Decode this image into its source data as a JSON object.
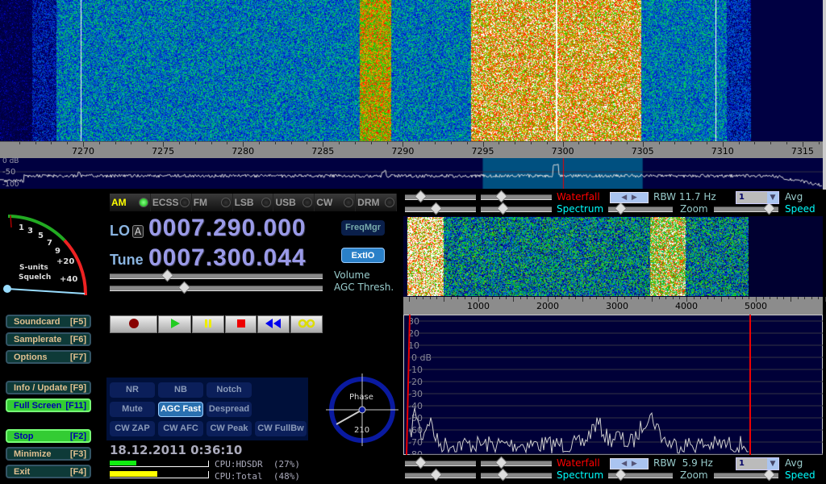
{
  "waterfall": {
    "freq_ticks": [
      "7270",
      "7275",
      "7280",
      "7285",
      "7290",
      "7295",
      "7300",
      "7305",
      "7310",
      "7315"
    ],
    "db_labels": [
      "0 dB",
      "-50",
      "-100"
    ],
    "tuned_khz": 7300.044,
    "filter_khz": [
      7295,
      7305
    ]
  },
  "modes": [
    {
      "label": "AM",
      "active": true
    },
    {
      "label": "ECSS",
      "active": false
    },
    {
      "label": "FM",
      "active": false
    },
    {
      "label": "LSB",
      "active": false
    },
    {
      "label": "USB",
      "active": false
    },
    {
      "label": "CW",
      "active": false
    },
    {
      "label": "DRM",
      "active": false
    }
  ],
  "smeter": {
    "scale": [
      "1",
      "3",
      "5",
      "7",
      "9",
      "+20",
      "+40"
    ],
    "label1": "S-units",
    "label2": "Squelch"
  },
  "lo": {
    "label": "LO",
    "lock": "A",
    "value": "0007.290.000"
  },
  "tune": {
    "label": "Tune",
    "value": "0007.300.044"
  },
  "buttons": {
    "freqmgr": "FreqMgr",
    "extio": "ExtIO"
  },
  "sliders": {
    "volume": "Volume",
    "agc": "AGC Thresh.",
    "volume_level": 0.27,
    "agc_level": 0.35
  },
  "side": [
    {
      "label": "Soundcard",
      "key": "[F5]"
    },
    {
      "label": "Samplerate",
      "key": "[F6]"
    },
    {
      "label": "Options",
      "key": "[F7]"
    },
    {
      "label": "Info / Update",
      "key": "[F9]"
    },
    {
      "label": "Full Screen",
      "key": "[F11]"
    },
    {
      "label": "Stop",
      "key": "[F2]"
    },
    {
      "label": "Minimize",
      "key": "[F3]"
    },
    {
      "label": "Exit",
      "key": "[F4]"
    }
  ],
  "transport": [
    "record",
    "play",
    "pause",
    "stop",
    "rewind",
    "loop"
  ],
  "dsp": [
    "NR",
    "NB",
    "Notch",
    "Mute",
    "AGC Fast",
    "Despread",
    "CW ZAP",
    "CW AFC",
    "CW Peak",
    "CW FullBw"
  ],
  "dsp_active": "AGC Fast",
  "phase": {
    "label": "Phase",
    "value": "210"
  },
  "datetime": "18.12.2011 0:36:10",
  "cpu": {
    "hdsdr": "CPU:HDSDR  (27%)",
    "total": "CPU:Total  (48%)",
    "hdsdr_pct": 27,
    "total_pct": 48
  },
  "audio": {
    "top": {
      "waterfall": "Waterfall",
      "spectrum": "Spectrum",
      "rbw": "RBW 11.7 Hz",
      "avg_value": "1",
      "avg": "Avg",
      "zoom": "Zoom",
      "speed": "Speed"
    },
    "bottom": {
      "waterfall": "Waterfall",
      "spectrum": "Spectrum",
      "rbw": "RBW  5.9 Hz",
      "avg_value": "1",
      "avg": "Avg",
      "zoom": "Zoom",
      "speed": "Speed"
    },
    "freq_ticks": [
      "1000",
      "2000",
      "3000",
      "4000",
      "5000"
    ],
    "db_ticks": [
      "30",
      "20",
      "10",
      "0 dB",
      "-10",
      "-20",
      "-30",
      "-40",
      "-50",
      "-60",
      "-70",
      "-80"
    ]
  },
  "colors": {
    "accent_red": "#ff0000",
    "accent_cyan": "#00ffff",
    "panel_navy": "#000040",
    "filter_blue": "#005080"
  }
}
